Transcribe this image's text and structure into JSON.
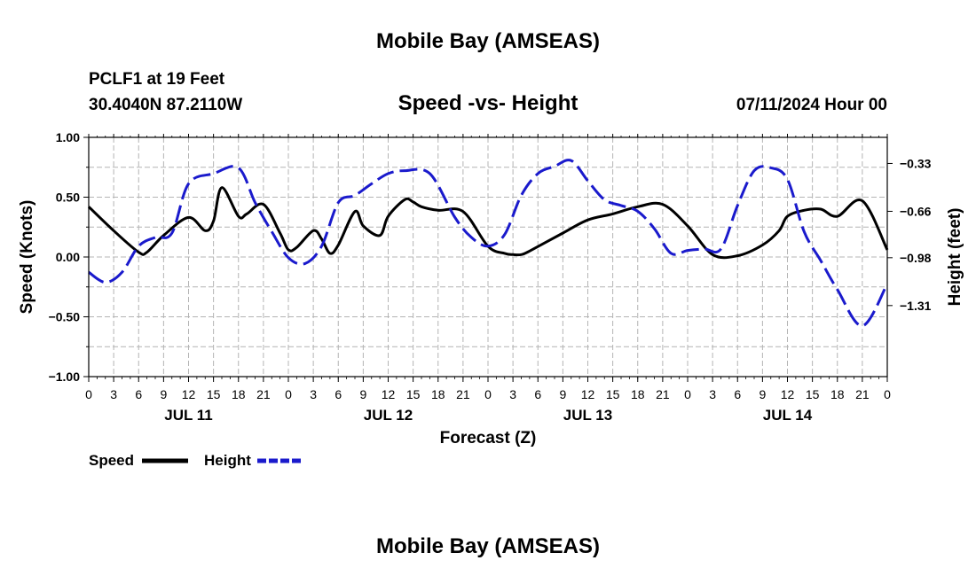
{
  "header": {
    "title": "Mobile Bay (AMSEAS)",
    "station": "PCLF1 at 19 Feet",
    "coords": "30.4040N  87.2110W",
    "subtitle": "Speed -vs- Height",
    "datetime": "07/11/2024 Hour 00"
  },
  "footer": {
    "title": "Mobile Bay (AMSEAS)"
  },
  "legend": {
    "speed_label": "Speed",
    "height_label": "Height",
    "speed_color": "#000000",
    "height_color": "#1a1acc"
  },
  "chart_data": {
    "type": "line",
    "title": "Speed -vs- Height",
    "xlabel": "Forecast (Z)",
    "ylabel_left": "Speed (Knots)",
    "ylabel_right": "Height (feet)",
    "x_range_hours": [
      0,
      96
    ],
    "x_tick_labels": [
      "0",
      "3",
      "6",
      "9",
      "12",
      "15",
      "18",
      "21",
      "0",
      "3",
      "6",
      "9",
      "12",
      "15",
      "18",
      "21",
      "0",
      "3",
      "6",
      "9",
      "12",
      "15",
      "18",
      "21",
      "0",
      "3",
      "6",
      "9",
      "12",
      "15",
      "18",
      "21",
      "0"
    ],
    "day_labels": [
      {
        "hour": 12,
        "label": "JUL 11"
      },
      {
        "hour": 36,
        "label": "JUL 12"
      },
      {
        "hour": 60,
        "label": "JUL 13"
      },
      {
        "hour": 84,
        "label": "JUL 14"
      }
    ],
    "y_left": {
      "ylim": [
        -1.0,
        1.0
      ],
      "ticks": [
        -1.0,
        -0.5,
        0.0,
        0.5,
        1.0
      ],
      "tick_labels": [
        "−1.00",
        "−0.50",
        "0.00",
        "0.50",
        "1.00"
      ]
    },
    "y_right": {
      "ylim": [
        -1.8,
        -0.15
      ],
      "ticks": [
        -0.33,
        -0.66,
        -0.98,
        -1.31
      ],
      "tick_labels": [
        "−0.33",
        "−0.66",
        "−0.98",
        "−1.31"
      ]
    },
    "grid": true,
    "series": [
      {
        "name": "Speed",
        "axis": "left",
        "color": "#000000",
        "style": "solid",
        "x": [
          0,
          3,
          6,
          7,
          9,
          12,
          14,
          15,
          16,
          18,
          19,
          21,
          23,
          24,
          25,
          27,
          28,
          29,
          30,
          32,
          33,
          35,
          36,
          38,
          39,
          40,
          42,
          45,
          48,
          50,
          51,
          52,
          53,
          57,
          60,
          63,
          66,
          69,
          72,
          75,
          78,
          81,
          83,
          84,
          86,
          88,
          90,
          93,
          96
        ],
        "values": [
          0.42,
          0.22,
          0.04,
          0.04,
          0.18,
          0.33,
          0.22,
          0.3,
          0.58,
          0.34,
          0.36,
          0.44,
          0.2,
          0.06,
          0.08,
          0.22,
          0.15,
          0.03,
          0.1,
          0.38,
          0.26,
          0.18,
          0.34,
          0.48,
          0.46,
          0.42,
          0.39,
          0.38,
          0.09,
          0.03,
          0.02,
          0.02,
          0.05,
          0.2,
          0.31,
          0.36,
          0.42,
          0.44,
          0.26,
          0.02,
          0.01,
          0.1,
          0.22,
          0.34,
          0.39,
          0.4,
          0.34,
          0.47,
          0.06
        ]
      },
      {
        "name": "Height",
        "axis": "right",
        "color": "#1a1acc",
        "style": "dashed",
        "x": [
          0,
          2,
          4,
          6,
          8,
          10,
          12,
          15,
          18,
          20,
          22,
          24,
          26,
          28,
          30,
          32,
          34,
          36,
          38,
          41,
          44,
          46,
          48,
          50,
          52,
          54,
          56,
          58,
          60,
          62,
          64,
          66,
          68,
          70,
          72,
          74,
          76,
          78,
          80,
          82,
          84,
          86,
          88,
          90,
          93,
          96
        ],
        "values": [
          -1.08,
          -1.15,
          -1.08,
          -0.9,
          -0.84,
          -0.81,
          -0.47,
          -0.4,
          -0.36,
          -0.6,
          -0.8,
          -0.98,
          -1.02,
          -0.9,
          -0.6,
          -0.55,
          -0.47,
          -0.4,
          -0.38,
          -0.4,
          -0.7,
          -0.84,
          -0.9,
          -0.82,
          -0.55,
          -0.4,
          -0.35,
          -0.31,
          -0.45,
          -0.58,
          -0.62,
          -0.66,
          -0.78,
          -0.95,
          -0.93,
          -0.92,
          -0.92,
          -0.62,
          -0.38,
          -0.36,
          -0.44,
          -0.8,
          -1.0,
          -1.2,
          -1.45,
          -1.16
        ]
      }
    ]
  }
}
